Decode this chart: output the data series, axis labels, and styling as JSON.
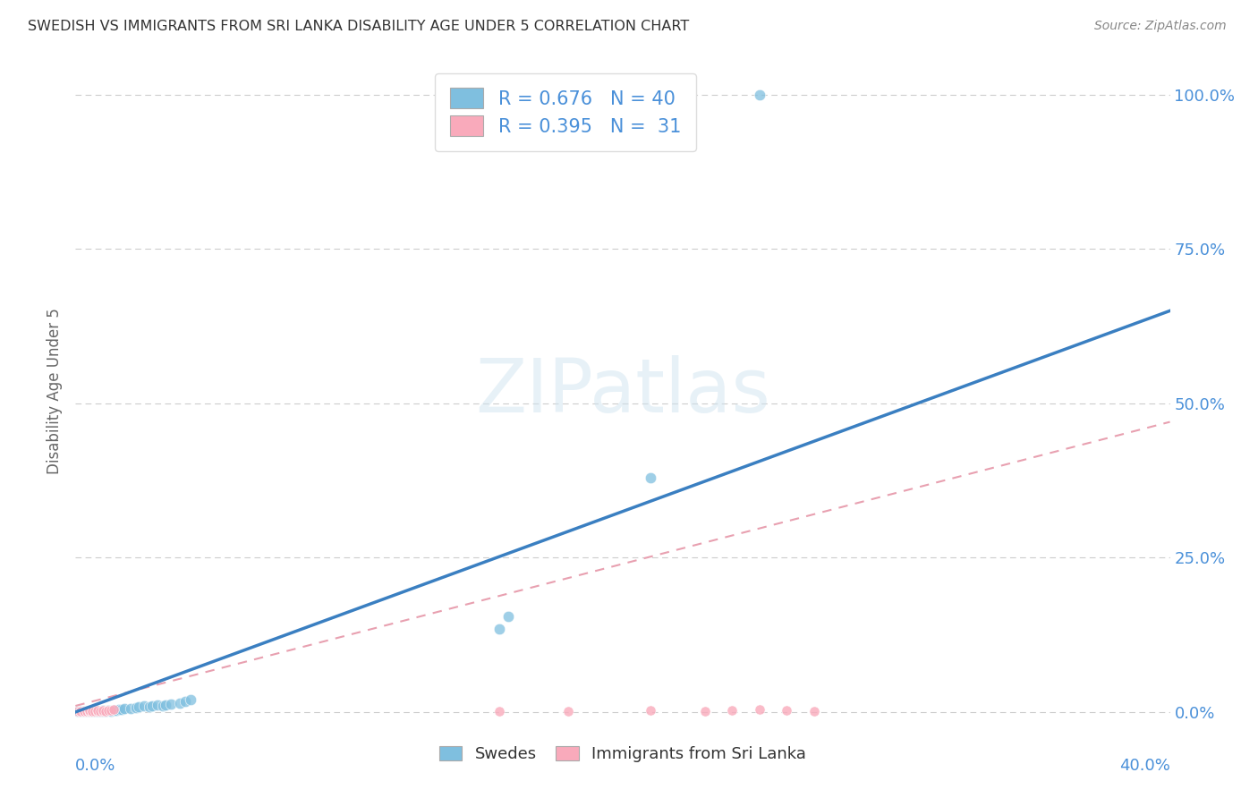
{
  "title": "SWEDISH VS IMMIGRANTS FROM SRI LANKA DISABILITY AGE UNDER 5 CORRELATION CHART",
  "source": "Source: ZipAtlas.com",
  "ylabel": "Disability Age Under 5",
  "xlim": [
    0.0,
    0.4
  ],
  "ylim": [
    -0.01,
    1.05
  ],
  "ytick_labels": [
    "0.0%",
    "25.0%",
    "50.0%",
    "75.0%",
    "100.0%"
  ],
  "ytick_values": [
    0.0,
    0.25,
    0.5,
    0.75,
    1.0
  ],
  "title_color": "#333333",
  "source_color": "#888888",
  "blue_scatter_color": "#7fbfdf",
  "pink_scatter_color": "#f9aabb",
  "blue_line_color": "#3a7fc1",
  "pink_line_color": "#e8a0b0",
  "axis_label_color": "#4a90d9",
  "watermark_color": "#d0e4f0",
  "watermark_text": "ZIPatlas",
  "R_blue": 0.676,
  "N_blue": 40,
  "R_pink": 0.395,
  "N_pink": 31,
  "blue_line_x0": 0.0,
  "blue_line_y0": 0.0,
  "blue_line_x1": 0.4,
  "blue_line_y1": 0.65,
  "pink_line_x0": 0.0,
  "pink_line_y0": 0.01,
  "pink_line_x1": 0.4,
  "pink_line_y1": 0.47,
  "swedes_x": [
    0.001,
    0.002,
    0.003,
    0.003,
    0.004,
    0.005,
    0.005,
    0.006,
    0.006,
    0.007,
    0.008,
    0.008,
    0.009,
    0.01,
    0.01,
    0.011,
    0.012,
    0.013,
    0.014,
    0.015,
    0.016,
    0.017,
    0.018,
    0.02,
    0.022,
    0.023,
    0.025,
    0.027,
    0.028,
    0.03,
    0.032,
    0.033,
    0.035,
    0.038,
    0.04,
    0.042,
    0.155,
    0.158,
    0.21,
    0.25
  ],
  "swedes_y": [
    0.001,
    0.001,
    0.002,
    0.001,
    0.001,
    0.002,
    0.001,
    0.001,
    0.002,
    0.001,
    0.001,
    0.002,
    0.001,
    0.002,
    0.003,
    0.001,
    0.003,
    0.002,
    0.003,
    0.003,
    0.004,
    0.004,
    0.005,
    0.005,
    0.007,
    0.008,
    0.01,
    0.008,
    0.01,
    0.012,
    0.01,
    0.012,
    0.013,
    0.015,
    0.017,
    0.02,
    0.135,
    0.155,
    0.38,
    1.0
  ],
  "srilanka_x": [
    0.001,
    0.002,
    0.002,
    0.003,
    0.003,
    0.003,
    0.004,
    0.004,
    0.005,
    0.005,
    0.005,
    0.006,
    0.006,
    0.007,
    0.008,
    0.008,
    0.009,
    0.01,
    0.01,
    0.011,
    0.012,
    0.013,
    0.014,
    0.155,
    0.18,
    0.21,
    0.23,
    0.24,
    0.25,
    0.26,
    0.27
  ],
  "srilanka_y": [
    0.001,
    0.001,
    0.002,
    0.001,
    0.001,
    0.002,
    0.001,
    0.002,
    0.001,
    0.002,
    0.003,
    0.001,
    0.002,
    0.001,
    0.002,
    0.003,
    0.002,
    0.001,
    0.003,
    0.002,
    0.003,
    0.003,
    0.004,
    0.001,
    0.002,
    0.003,
    0.002,
    0.003,
    0.004,
    0.003,
    0.002
  ],
  "grid_color": "#cccccc",
  "background_color": "#ffffff",
  "legend_edge_color": "#dddddd"
}
